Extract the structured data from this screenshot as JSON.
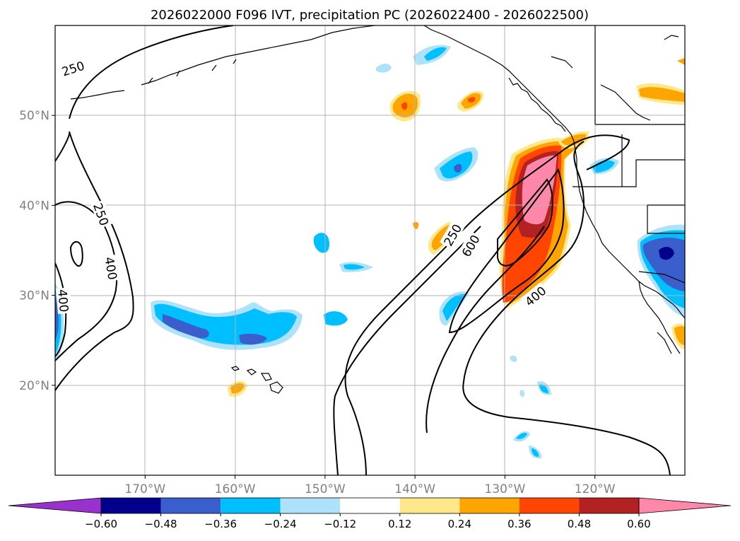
{
  "chart_data": {
    "type": "contour_map",
    "title": "2026022000 F096 IVT, precipitation PC (2026022400 - 2026022500)",
    "map_extent": {
      "lon": [
        -180,
        -110
      ],
      "lat": [
        10,
        60
      ]
    },
    "x_ticks": [
      {
        "value": -170,
        "label": "170°W"
      },
      {
        "value": -160,
        "label": "160°W"
      },
      {
        "value": -150,
        "label": "150°W"
      },
      {
        "value": -140,
        "label": "140°W"
      },
      {
        "value": -130,
        "label": "130°W"
      },
      {
        "value": -120,
        "label": "120°W"
      }
    ],
    "y_ticks": [
      {
        "value": 20,
        "label": "20°N"
      },
      {
        "value": 30,
        "label": "30°N"
      },
      {
        "value": 40,
        "label": "40°N"
      },
      {
        "value": 50,
        "label": "50°N"
      }
    ],
    "grid": true,
    "ivt_contour_levels": [
      250,
      400,
      600
    ],
    "ivt_contour_labels": [
      {
        "text": "250",
        "lon": -178.0,
        "lat": 55.2,
        "angle": -18
      },
      {
        "text": "250",
        "lon": -174.9,
        "lat": 39.0,
        "angle": 70
      },
      {
        "text": "400",
        "lon": -173.8,
        "lat": 33.0,
        "angle": 80
      },
      {
        "text": "400",
        "lon": -179.1,
        "lat": 29.4,
        "angle": 85
      },
      {
        "text": "250",
        "lon": -135.8,
        "lat": 36.7,
        "angle": -60
      },
      {
        "text": "600",
        "lon": -133.8,
        "lat": 35.5,
        "angle": -60
      },
      {
        "text": "400",
        "lon": -126.6,
        "lat": 29.9,
        "angle": -40
      }
    ],
    "colorbar": {
      "levels": [
        -0.6,
        -0.48,
        -0.36,
        -0.24,
        -0.12,
        0.12,
        0.24,
        0.36,
        0.48,
        0.6
      ],
      "tick_labels": [
        "−0.60",
        "−0.48",
        "−0.36",
        "−0.24",
        "−0.12",
        "0.12",
        "0.24",
        "0.36",
        "0.48",
        "0.60"
      ],
      "colors": [
        "#9932CC",
        "#00008B",
        "#3A5FCD",
        "#00BFFF",
        "#ADE2FA",
        "#FFFFFF",
        "#FFE88C",
        "#FFA500",
        "#FF4500",
        "#B22222",
        "#FF88AA"
      ],
      "extend": "both",
      "orientation": "horizontal"
    },
    "positive_precip_features": [
      {
        "name": "Atmospheric river band near northern California coast",
        "peak_value": 0.6
      },
      {
        "name": "Small cell near 141W 51N",
        "peak_value": 0.36
      },
      {
        "name": "Small cell near 134W 50N",
        "peak_value": 0.36
      },
      {
        "name": "Band near 135W 37N",
        "peak_value": 0.36
      },
      {
        "name": "Cell near 160W 20N",
        "peak_value": 0.24
      }
    ],
    "negative_precip_features": [
      {
        "name": "Band near Hawaii 160W 26N",
        "min_value": -0.48
      },
      {
        "name": "Cell off Baja California 116W 34N",
        "min_value": -0.6
      },
      {
        "name": "Cell near 136W 44N",
        "min_value": -0.48
      },
      {
        "name": "Edge cell near 180 29N",
        "min_value": -0.48
      }
    ]
  }
}
